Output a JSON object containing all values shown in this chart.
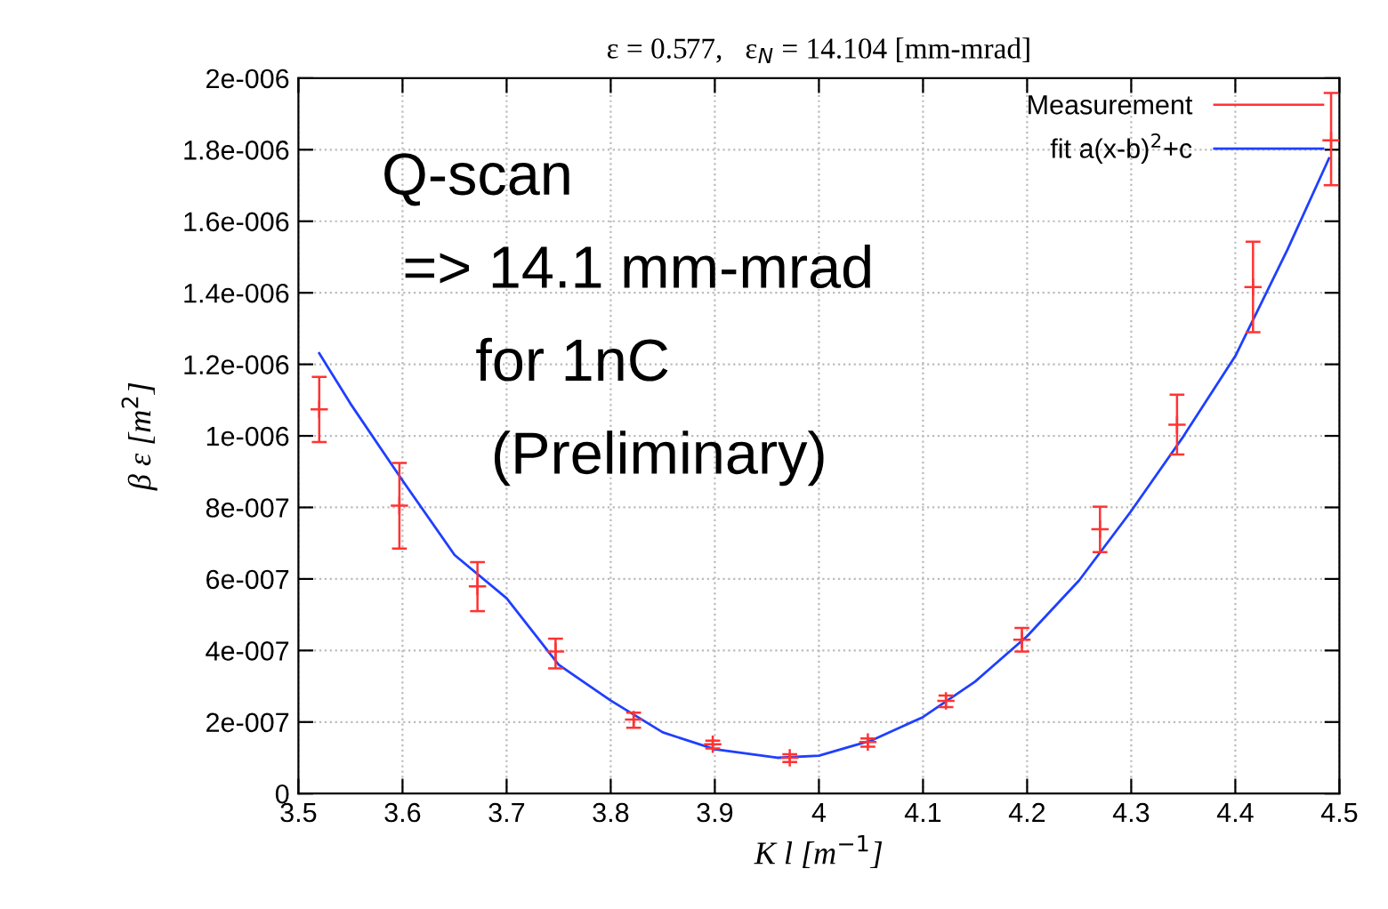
{
  "chart_data": {
    "type": "scatter",
    "title": "ε = 0.577,   ε$_{N}$ = 14.104 [mm-mrad]",
    "xlabel": "K l [m$^{−1}$]",
    "ylabel": "β ε [m$^{2}$]",
    "series": [
      {
        "name": "Measurement",
        "color": "#ff3333",
        "marker": "cross",
        "x": [
          3.52,
          3.597,
          3.672,
          3.747,
          3.822,
          3.898,
          3.972,
          4.047,
          4.122,
          4.195,
          4.27,
          4.344,
          4.417,
          4.492
        ],
        "values": [
          1.074e-06,
          8.05e-07,
          5.79e-07,
          3.97e-07,
          2.07e-07,
          1.38e-07,
          1e-07,
          1.44e-07,
          2.59e-07,
          4.3e-07,
          7.39e-07,
          1.031e-06,
          1.416e-06,
          1.826e-06
        ],
        "errors": [
          [
            9.83e-07,
            1.165e-06
          ],
          [
            6.85e-07,
            9.24e-07
          ],
          [
            5.1e-07,
            6.47e-07
          ],
          [
            3.5e-07,
            4.33e-07
          ],
          [
            1.84e-07,
            2.26e-07
          ],
          [
            1.26e-07,
            1.48e-07
          ],
          [
            8.8e-08,
            1.1e-07
          ],
          [
            1.31e-07,
            1.54e-07
          ],
          [
            2.42e-07,
            2.74e-07
          ],
          [
            3.97e-07,
            4.63e-07
          ],
          [
            6.75e-07,
            8.02e-07
          ],
          [
            9.48e-07,
            1.115e-06
          ],
          [
            1.29e-06,
            1.543e-06
          ],
          [
            1.701e-06,
            1.959e-06
          ]
        ]
      },
      {
        "name": "fit a(x-b)$^{2}$+c",
        "type": "line",
        "color": "#1f3fff",
        "x": [
          3.52,
          3.55,
          3.6,
          3.65,
          3.7,
          3.75,
          3.8,
          3.85,
          3.9,
          3.96,
          4.0,
          4.05,
          4.1,
          4.15,
          4.2,
          4.25,
          4.3,
          4.35,
          4.4,
          4.45,
          4.49
        ],
        "values": [
          1.231e-06,
          1.09e-06,
          8.75e-07,
          6.67e-07,
          5.46e-07,
          3.6e-07,
          2.6e-07,
          1.71e-07,
          1.24e-07,
          1e-07,
          1.06e-07,
          1.48e-07,
          2.14e-07,
          3.13e-07,
          4.4e-07,
          5.96e-07,
          7.9e-07,
          9.98e-07,
          1.223e-06,
          1.52e-06,
          1.776e-06
        ]
      }
    ],
    "xlim": [
      3.5,
      4.5
    ],
    "xticks": [
      3.5,
      3.6,
      3.7,
      3.8,
      3.9,
      4,
      4.1,
      4.2,
      4.3,
      4.4,
      4.5
    ],
    "ylim": [
      0,
      2e-06
    ],
    "yticks": [
      0,
      {
        "value": 2e-07,
        "label": "2e-007"
      },
      {
        "value": 4e-07,
        "label": "4e-007"
      },
      {
        "value": 6e-07,
        "label": "6e-007"
      },
      {
        "value": 8e-07,
        "label": "8e-007"
      },
      {
        "value": 1e-06,
        "label": "1e-006"
      },
      {
        "value": 1.2e-06,
        "label": "1.2e-006"
      },
      {
        "value": 1.4e-06,
        "label": "1.4e-006"
      },
      {
        "value": 1.6e-06,
        "label": "1.6e-006"
      },
      {
        "value": 1.8e-06,
        "label": "1.8e-006"
      },
      {
        "value": 2e-06,
        "label": "2e-006"
      }
    ],
    "grid": true,
    "legend": "top right",
    "annotations": [
      "Q-scan",
      "=> 14.1 mm-mrad",
      "for 1nC",
      "(Preliminary)"
    ]
  }
}
